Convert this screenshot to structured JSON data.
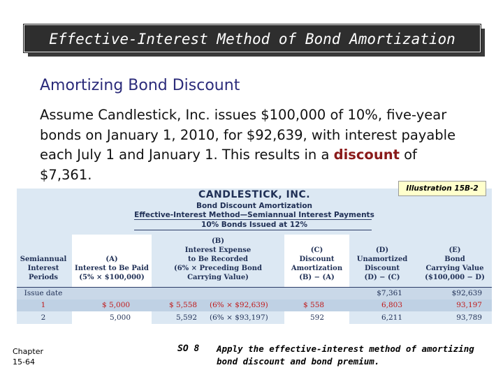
{
  "slide": {
    "title": "Effective-Interest Method of Bond Amortization",
    "subtitle": "Amortizing Bond Discount",
    "paragraph_before": "Assume Candlestick, Inc. issues $100,000 of 10%, five-year bonds on January 1, 2010, for $92,639, with interest payable each July 1 and January 1. This results in a ",
    "paragraph_highlight": "discount",
    "paragraph_after": " of $7,361.",
    "illustration_label": "Illustration 15B-2",
    "chapter_line1": "Chapter",
    "chapter_line2": "15-64",
    "so_label": "SO 8",
    "so_text": "Apply the effective-interest method of amortizing bond discount and bond premium."
  },
  "table": {
    "company": "CANDLESTICK, INC.",
    "heading1": "Bond Discount Amortization",
    "heading2": "Effective-Interest Method—Semiannual Interest Payments",
    "heading3": "10% Bonds Issued at 12%",
    "columns": {
      "periods": [
        "Semiannual",
        "Interest",
        "Periods"
      ],
      "a": [
        "(A)",
        "Interest to Be Paid",
        "(5% × $100,000)"
      ],
      "b": [
        "(B)",
        "Interest Expense",
        "to Be Recorded",
        "(6% × Preceding Bond",
        "Carrying Value)"
      ],
      "c": [
        "(C)",
        "Discount",
        "Amortization",
        "(B) − (A)"
      ],
      "d": [
        "(D)",
        "Unamortized",
        "Discount",
        "(D) − (C)"
      ],
      "e": [
        "(E)",
        "Bond",
        "Carrying Value",
        "($100,000 − D)"
      ]
    },
    "rows": [
      {
        "period": "Issue date",
        "a": "",
        "b": "",
        "b_calc": "",
        "c": "",
        "d": "$7,361",
        "e": "$92,639"
      },
      {
        "period": "1",
        "a": "$ 5,000",
        "b": "$ 5,558",
        "b_calc": "(6% × $92,639)",
        "c": "$ 558",
        "d": "6,803",
        "e": "93,197"
      },
      {
        "period": "2",
        "a": "5,000",
        "b": "5,592",
        "b_calc": "(6% × $93,197)",
        "c": "592",
        "d": "6,211",
        "e": "93,789"
      }
    ]
  }
}
